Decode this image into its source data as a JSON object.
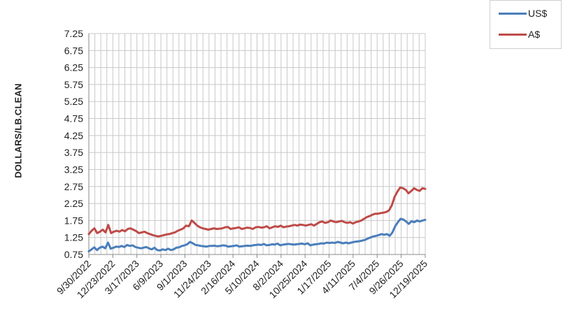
{
  "chart_data": {
    "type": "line",
    "title": "",
    "ylabel": "DOLLARS/LB.CLEAN",
    "xlabel": "",
    "ylim": [
      0.75,
      7.25
    ],
    "yticks": [
      "7.25",
      "6.75",
      "6.25",
      "5.75",
      "5.25",
      "4.75",
      "4.25",
      "3.75",
      "3.25",
      "2.75",
      "2.25",
      "1.75",
      "1.25",
      "0.75"
    ],
    "xticks": [
      "9/30/2022",
      "12/23/2022",
      "3/17/2023",
      "6/9/2023",
      "9/1/2023",
      "11/24/2023",
      "2/16/2024",
      "5/10/2024",
      "8/2/2024",
      "10/25/2024",
      "1/17/2025",
      "4/11/2025",
      "7/4/2025",
      "9/26/2025",
      "12/19/2025"
    ],
    "grid": true,
    "legend_position": "top-right",
    "series": [
      {
        "name": "US$",
        "color": "#4a7ebb",
        "values": [
          0.84,
          0.9,
          0.96,
          0.88,
          0.95,
          0.98,
          0.93,
          1.1,
          0.92,
          0.95,
          0.98,
          0.97,
          1.0,
          0.97,
          1.03,
          1.0,
          1.02,
          0.97,
          0.95,
          0.93,
          0.95,
          0.97,
          0.93,
          0.9,
          0.95,
          0.88,
          0.87,
          0.9,
          0.88,
          0.92,
          0.88,
          0.9,
          0.95,
          0.96,
          1.0,
          1.02,
          1.05,
          1.12,
          1.08,
          1.03,
          1.02,
          1.0,
          0.99,
          0.98,
          1.0,
          1.0,
          1.01,
          0.99,
          1.0,
          1.02,
          1.01,
          0.98,
          0.99,
          1.0,
          1.02,
          0.98,
          0.99,
          1.0,
          1.01,
          1.0,
          1.02,
          1.03,
          1.04,
          1.03,
          1.06,
          1.02,
          1.03,
          1.05,
          1.04,
          1.07,
          1.02,
          1.04,
          1.05,
          1.06,
          1.05,
          1.04,
          1.05,
          1.06,
          1.07,
          1.05,
          1.08,
          1.02,
          1.04,
          1.05,
          1.06,
          1.08,
          1.07,
          1.1,
          1.09,
          1.1,
          1.09,
          1.12,
          1.1,
          1.08,
          1.1,
          1.08,
          1.1,
          1.12,
          1.13,
          1.14,
          1.16,
          1.18,
          1.22,
          1.25,
          1.28,
          1.3,
          1.32,
          1.35,
          1.33,
          1.35,
          1.3,
          1.4,
          1.58,
          1.7,
          1.8,
          1.78,
          1.72,
          1.65,
          1.73,
          1.7,
          1.75,
          1.72,
          1.75,
          1.77
        ]
      },
      {
        "name": "A$",
        "color": "#be4b48",
        "values": [
          1.35,
          1.45,
          1.52,
          1.38,
          1.42,
          1.48,
          1.4,
          1.62,
          1.38,
          1.42,
          1.45,
          1.42,
          1.47,
          1.43,
          1.5,
          1.52,
          1.48,
          1.44,
          1.38,
          1.4,
          1.42,
          1.38,
          1.35,
          1.32,
          1.3,
          1.28,
          1.3,
          1.32,
          1.34,
          1.35,
          1.38,
          1.4,
          1.45,
          1.48,
          1.52,
          1.6,
          1.58,
          1.75,
          1.68,
          1.6,
          1.55,
          1.52,
          1.5,
          1.48,
          1.5,
          1.52,
          1.5,
          1.51,
          1.52,
          1.55,
          1.56,
          1.5,
          1.52,
          1.53,
          1.55,
          1.5,
          1.52,
          1.54,
          1.53,
          1.5,
          1.55,
          1.56,
          1.54,
          1.55,
          1.58,
          1.52,
          1.55,
          1.58,
          1.56,
          1.6,
          1.55,
          1.57,
          1.58,
          1.6,
          1.62,
          1.6,
          1.63,
          1.62,
          1.6,
          1.62,
          1.64,
          1.6,
          1.65,
          1.7,
          1.72,
          1.68,
          1.7,
          1.75,
          1.72,
          1.7,
          1.72,
          1.74,
          1.7,
          1.68,
          1.7,
          1.66,
          1.7,
          1.72,
          1.75,
          1.8,
          1.85,
          1.88,
          1.92,
          1.95,
          1.95,
          1.97,
          1.98,
          2.0,
          2.05,
          2.2,
          2.45,
          2.6,
          2.72,
          2.7,
          2.65,
          2.55,
          2.62,
          2.7,
          2.65,
          2.62,
          2.7,
          2.68
        ]
      }
    ]
  }
}
